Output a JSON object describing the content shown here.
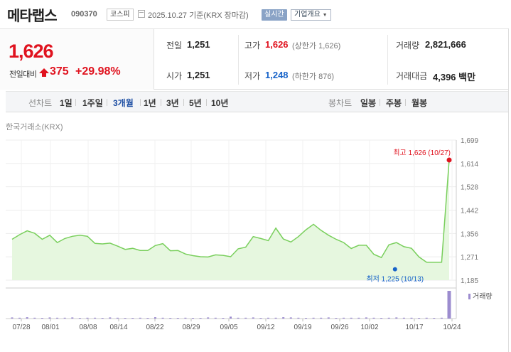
{
  "header": {
    "stock_name": "메타랩스",
    "stock_code": "090370",
    "market": "코스피",
    "date": "2025.10.27 기준(KRX 장마감)",
    "realtime_label": "실시간",
    "info_label": "기업개요"
  },
  "quote": {
    "current_price": "1,626",
    "change_label": "전일대비",
    "change_value": "375",
    "change_pct": "+29.98%",
    "prev_close_label": "전일",
    "prev_close": "1,251",
    "open_label": "시가",
    "open": "1,251",
    "high_label": "고가",
    "high": "1,626",
    "high_sub": "(상한가 1,626)",
    "low_label": "저가",
    "low": "1,248",
    "low_sub": "(하한가 876)",
    "volume_label": "거래량",
    "volume": "2,821,666",
    "amount_label": "거래대금",
    "amount": "4,396 백만"
  },
  "tabs": {
    "line_header": "선차트",
    "line": [
      "1일",
      "1주일",
      "3개월",
      "1년",
      "3년",
      "5년",
      "10년"
    ],
    "active": "3개월",
    "candle_header": "봉차트",
    "candle": [
      "일봉",
      "주봉",
      "월봉"
    ]
  },
  "chart": {
    "exchange_label": "한국거래소(KRX)",
    "volume_legend": "거래량",
    "max_label": "최고 1,626 (10/27)",
    "min_label": "최저 1,225 (10/13)",
    "colors": {
      "line": "#79cf5c",
      "fill": "#e6f7df",
      "max": "#e0131f",
      "min": "#1763c9",
      "volume": "#9c8ccf"
    }
  },
  "chart_data": {
    "type": "area",
    "x_tick_labels": [
      "07/28",
      "08/01",
      "08/08",
      "08/14",
      "08/22",
      "08/29",
      "09/05",
      "09/12",
      "09/19",
      "09/26",
      "10/02",
      "10/17",
      "10/24"
    ],
    "y_tick_labels": [
      "1,699",
      "1,614",
      "1,528",
      "1,442",
      "1,356",
      "1,271",
      "1,185"
    ],
    "ylim": [
      1185,
      1699
    ],
    "grid": true,
    "series": [
      {
        "values": [
          1335,
          1352,
          1366,
          1357,
          1335,
          1350,
          1323,
          1338,
          1346,
          1350,
          1346,
          1320,
          1318,
          1321,
          1310,
          1298,
          1302,
          1294,
          1294,
          1312,
          1319,
          1293,
          1294,
          1281,
          1275,
          1271,
          1270,
          1278,
          1276,
          1271,
          1300,
          1306,
          1345,
          1338,
          1330,
          1376,
          1336,
          1325,
          1345,
          1370,
          1390,
          1368,
          1350,
          1335,
          1323,
          1301,
          1313,
          1313,
          1280,
          1268,
          1315,
          1323,
          1308,
          1302,
          1270,
          1251,
          1251,
          1251,
          1626
        ]
      }
    ],
    "max_point": {
      "value": 1626,
      "date": "10/27"
    },
    "min_point": {
      "value": 1225,
      "date": "10/13"
    },
    "volume": [
      4,
      3,
      5,
      3,
      2,
      4,
      3,
      3,
      4,
      2,
      3,
      3,
      2,
      4,
      3,
      2,
      2,
      3,
      2,
      5,
      3,
      2,
      2,
      3,
      2,
      2,
      4,
      3,
      2,
      7,
      3,
      3,
      4,
      2,
      3,
      3,
      5,
      4,
      3,
      2,
      3,
      3,
      4,
      2,
      3,
      3,
      3,
      4,
      3,
      2,
      3,
      4,
      3,
      3,
      2,
      3,
      2,
      3,
      100
    ]
  }
}
